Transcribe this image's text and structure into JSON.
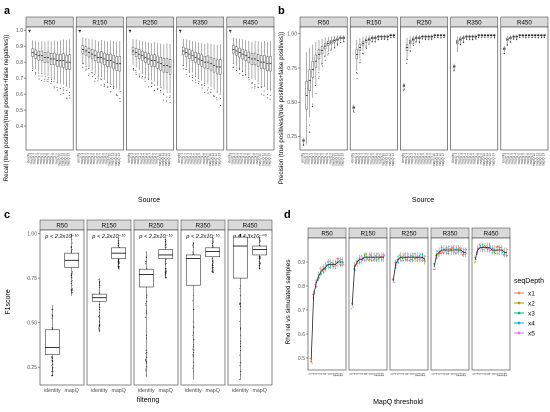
{
  "figure_labels": [
    "a",
    "b",
    "c",
    "d"
  ],
  "legend": {
    "title": "seqDepth",
    "items": [
      {
        "label": "x1",
        "color": "#f8766d"
      },
      {
        "label": "x2",
        "color": "#a3a500"
      },
      {
        "label": "x3",
        "color": "#00bf7d"
      },
      {
        "label": "x4",
        "color": "#00b0f6"
      },
      {
        "label": "x5",
        "color": "#e76bf3"
      }
    ]
  },
  "chart_data": [
    {
      "id": "a",
      "type": "box",
      "facets": [
        "R50",
        "R150",
        "R250",
        "R350",
        "R450"
      ],
      "xlabel": "Source",
      "ylabel": "Recall (true positives/(true positives+false negatives))",
      "ylim": [
        0.25,
        1.02
      ],
      "yticks": [
        "0.4",
        "0.5",
        "0.6",
        "0.7",
        "0.8",
        "0.9",
        "1.0"
      ],
      "categories": [
        "identity",
        "mapQ 1",
        "mapQ 2",
        "mapQ 3",
        "mapQ 4",
        "mapQ 5",
        "mapQ 6",
        "mapQ 7",
        "mapQ 8",
        "mapQ 9",
        "mapQ 10",
        "mapQ 11",
        "mapQ 12",
        "mapQ 13"
      ],
      "median_by_facet": [
        [
          1.0,
          0.86,
          0.85,
          0.84,
          0.84,
          0.83,
          0.83,
          0.82,
          0.82,
          0.81,
          0.81,
          0.81,
          0.8,
          0.8
        ],
        [
          1.0,
          0.88,
          0.87,
          0.86,
          0.85,
          0.84,
          0.83,
          0.83,
          0.82,
          0.81,
          0.81,
          0.8,
          0.79,
          0.79
        ],
        [
          1.0,
          0.87,
          0.86,
          0.85,
          0.84,
          0.83,
          0.82,
          0.81,
          0.81,
          0.8,
          0.79,
          0.78,
          0.78,
          0.77
        ],
        [
          1.0,
          0.87,
          0.86,
          0.85,
          0.84,
          0.83,
          0.82,
          0.81,
          0.8,
          0.8,
          0.79,
          0.78,
          0.77,
          0.77
        ],
        [
          1.0,
          0.88,
          0.87,
          0.86,
          0.85,
          0.84,
          0.83,
          0.82,
          0.82,
          0.81,
          0.8,
          0.8,
          0.79,
          0.79
        ]
      ]
    },
    {
      "id": "b",
      "type": "box",
      "facets": [
        "R50",
        "R150",
        "R250",
        "R350",
        "R450"
      ],
      "xlabel": "Source",
      "ylabel": "Precision (true positives/(true positives+false positives))",
      "ylim": [
        0.15,
        1.05
      ],
      "yticks": [
        "0.25",
        "0.50",
        "0.75",
        "1.00"
      ],
      "categories": [
        "identity",
        "mapQ 1",
        "mapQ 2",
        "mapQ 3",
        "mapQ 4",
        "mapQ 5",
        "mapQ 6",
        "mapQ 7",
        "mapQ 8",
        "mapQ 9",
        "mapQ 10",
        "mapQ 11",
        "mapQ 12",
        "mapQ 13"
      ],
      "median_by_facet": [
        [
          0.22,
          0.55,
          0.66,
          0.74,
          0.8,
          0.85,
          0.88,
          0.91,
          0.93,
          0.94,
          0.95,
          0.96,
          0.97,
          0.97
        ],
        [
          0.46,
          0.85,
          0.9,
          0.93,
          0.95,
          0.96,
          0.97,
          0.97,
          0.98,
          0.98,
          0.98,
          0.98,
          0.99,
          0.99
        ],
        [
          0.62,
          0.9,
          0.94,
          0.96,
          0.97,
          0.97,
          0.98,
          0.98,
          0.98,
          0.98,
          0.99,
          0.99,
          0.99,
          0.99
        ],
        [
          0.76,
          0.94,
          0.96,
          0.97,
          0.98,
          0.98,
          0.98,
          0.98,
          0.99,
          0.99,
          0.99,
          0.99,
          0.99,
          0.99
        ],
        [
          0.89,
          0.96,
          0.97,
          0.98,
          0.98,
          0.99,
          0.99,
          0.99,
          0.99,
          0.99,
          0.99,
          0.99,
          0.99,
          0.99
        ]
      ]
    },
    {
      "id": "c",
      "type": "box",
      "facets": [
        "R50",
        "R150",
        "R250",
        "R350",
        "R450"
      ],
      "xlabel": "filtering",
      "ylabel": "F1score",
      "ylim": [
        0.15,
        1.02
      ],
      "yticks": [
        "0.25",
        "0.50",
        "0.75",
        "1.00"
      ],
      "categories": [
        "identity",
        "mapQ"
      ],
      "annotations": [
        "p < 2.2x10⁻¹⁶",
        "p < 2.2x10⁻¹⁶",
        "p < 2.2x10⁻¹⁶",
        "p < 2.2x10⁻¹⁶",
        "p = 4.3x10⁻⁰⁶"
      ],
      "boxes_by_facet": [
        [
          {
            "q1": 0.32,
            "median": 0.36,
            "q3": 0.46,
            "low": 0.2,
            "high": 0.6
          },
          {
            "q1": 0.81,
            "median": 0.85,
            "q3": 0.89,
            "low": 0.65,
            "high": 1.0
          }
        ],
        [
          {
            "q1": 0.62,
            "median": 0.64,
            "q3": 0.66,
            "low": 0.45,
            "high": 0.75
          },
          {
            "q1": 0.86,
            "median": 0.89,
            "q3": 0.92,
            "low": 0.8,
            "high": 0.98
          }
        ],
        [
          {
            "q1": 0.7,
            "median": 0.77,
            "q3": 0.8,
            "low": 0.2,
            "high": 0.9
          },
          {
            "q1": 0.86,
            "median": 0.88,
            "q3": 0.91,
            "low": 0.75,
            "high": 0.98
          }
        ],
        [
          {
            "q1": 0.71,
            "median": 0.86,
            "q3": 0.88,
            "low": 0.18,
            "high": 0.95
          },
          {
            "q1": 0.87,
            "median": 0.9,
            "q3": 0.92,
            "low": 0.78,
            "high": 0.98
          }
        ],
        [
          {
            "q1": 0.75,
            "median": 0.93,
            "q3": 0.98,
            "low": 0.18,
            "high": 1.0
          },
          {
            "q1": 0.88,
            "median": 0.91,
            "q3": 0.93,
            "low": 0.8,
            "high": 0.98
          }
        ]
      ]
    },
    {
      "id": "d",
      "type": "line",
      "facets": [
        "R50",
        "R150",
        "R250",
        "R350",
        "R450"
      ],
      "xlabel": "MapQ threshold",
      "ylabel": "Rho rel vs simulated samples",
      "ylim": [
        0.45,
        1.0
      ],
      "yticks": [
        "0.5",
        "0.6",
        "0.7",
        "0.8",
        "0.9"
      ],
      "x": [
        "0",
        "1",
        "2",
        "3",
        "4",
        "5",
        "6",
        "7",
        "8",
        "9",
        "10",
        "11",
        "12",
        "13"
      ],
      "mean_by_facet": [
        [
          0.49,
          0.76,
          0.81,
          0.84,
          0.86,
          0.87,
          0.88,
          0.89,
          0.89,
          0.89,
          0.89,
          0.9,
          0.9,
          0.9
        ],
        [
          0.72,
          0.88,
          0.9,
          0.91,
          0.91,
          0.92,
          0.92,
          0.92,
          0.92,
          0.92,
          0.92,
          0.92,
          0.92,
          0.92
        ],
        [
          0.82,
          0.89,
          0.91,
          0.92,
          0.92,
          0.92,
          0.92,
          0.92,
          0.92,
          0.92,
          0.92,
          0.92,
          0.92,
          0.91
        ],
        [
          0.88,
          0.93,
          0.94,
          0.95,
          0.95,
          0.95,
          0.95,
          0.95,
          0.95,
          0.95,
          0.95,
          0.95,
          0.94,
          0.94
        ],
        [
          0.91,
          0.95,
          0.96,
          0.96,
          0.96,
          0.96,
          0.96,
          0.95,
          0.95,
          0.95,
          0.95,
          0.95,
          0.94,
          0.94
        ]
      ]
    }
  ]
}
